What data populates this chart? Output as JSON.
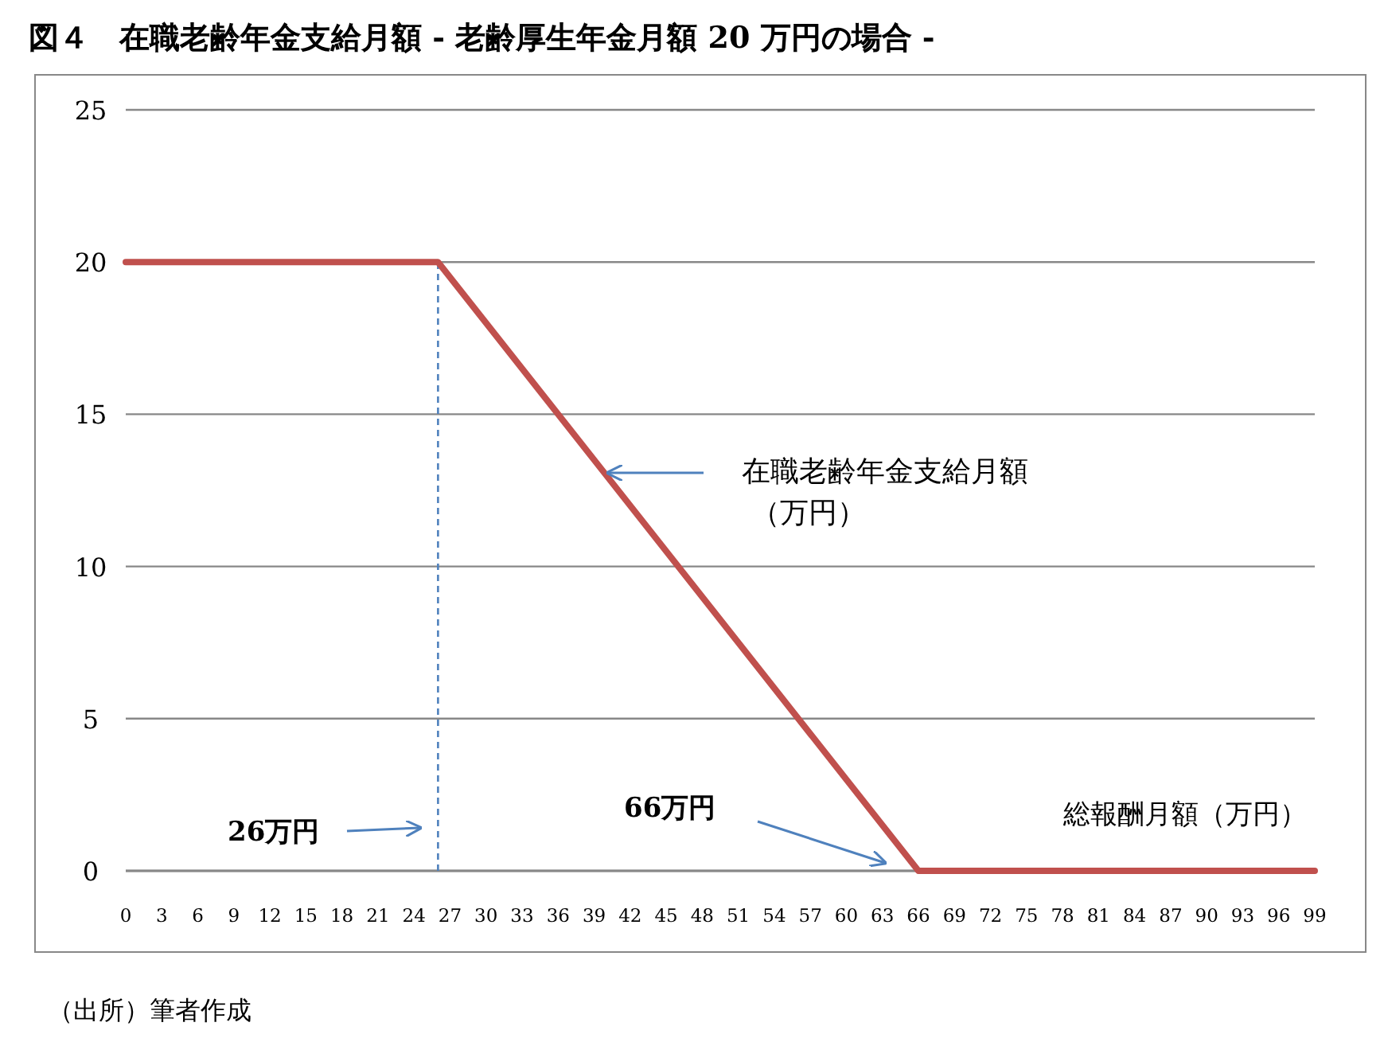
{
  "chart_data": {
    "type": "line",
    "title": "図４　在職老齢年金支給月額 - 老齢厚生年金月額 20 万円の場合 -",
    "xlabel": "総報酬月額（万円）",
    "series": [
      {
        "color": "#c0504d",
        "x": [
          0,
          26,
          66,
          99
        ],
        "values": [
          20,
          20,
          0,
          0
        ]
      }
    ],
    "xlim": [
      0,
      99
    ],
    "xticks": [
      0,
      3,
      6,
      9,
      12,
      15,
      18,
      21,
      24,
      27,
      30,
      33,
      36,
      39,
      42,
      45,
      48,
      51,
      54,
      57,
      60,
      63,
      66,
      69,
      72,
      75,
      78,
      81,
      84,
      87,
      90,
      93,
      96,
      99
    ],
    "ylim": [
      0,
      25
    ],
    "yticks": [
      0,
      5,
      10,
      15,
      20,
      25
    ],
    "grid": "y",
    "ref_lines": [
      {
        "axis": "x",
        "value": 26,
        "color": "#4f81bd",
        "line_style": "dashed"
      }
    ],
    "annotations": [
      "在職老齢年金支給月額（万円）",
      "26万円",
      "66万円",
      "（出所）筆者作成"
    ]
  }
}
